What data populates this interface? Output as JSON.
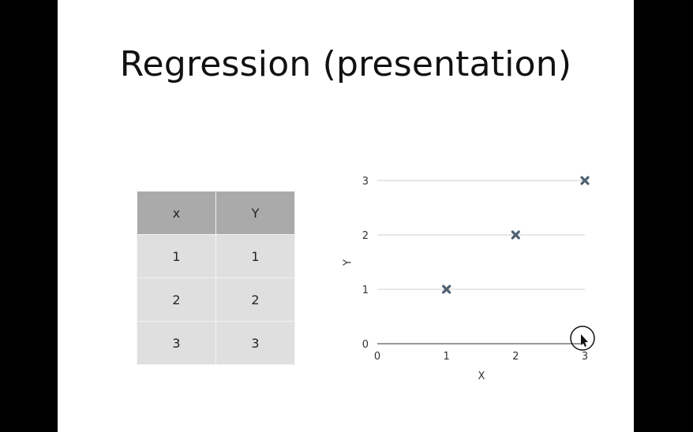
{
  "slide": {
    "title": "Regression (presentation)"
  },
  "table": {
    "headers": [
      "x",
      "Y"
    ],
    "rows": [
      [
        "1",
        "1"
      ],
      [
        "2",
        "2"
      ],
      [
        "3",
        "3"
      ]
    ]
  },
  "chart_data": {
    "type": "scatter",
    "x": [
      1,
      2,
      3
    ],
    "y": [
      1,
      2,
      3
    ],
    "xlabel": "X",
    "ylabel": "Y",
    "xlim": [
      0,
      3
    ],
    "ylim": [
      0,
      3
    ],
    "xticks": [
      "0",
      "1",
      "2",
      "3"
    ],
    "yticks": [
      "0",
      "1",
      "2",
      "3"
    ],
    "grid": true,
    "marker": "x",
    "marker_color": "#4f6173"
  }
}
